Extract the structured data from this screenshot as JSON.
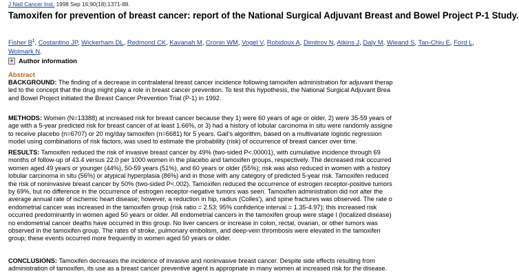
{
  "citation": {
    "journal": "J Natl Cancer Inst.",
    "details": " 1998 Sep 16;90(18):1371-88."
  },
  "title": "Tamoxifen for prevention of breast cancer: report of the National Surgical Adjuvant Breast and Bowel Project P-1 Study.",
  "authors": {
    "first_name": "Fisher B",
    "first_sup": "1",
    "rest": [
      "Costantino JP",
      "Wickerham DL",
      "Redmond CK",
      "Kavanah M",
      "Cronin WM",
      "Vogel V",
      "Robidoux A",
      "Dimitrov N",
      "Atkins J",
      "Daly M",
      "Wieand S",
      "Tan-Chiu E",
      "Ford L",
      "Wolmark N"
    ]
  },
  "author_info": {
    "label": "Author information"
  },
  "abstract": {
    "heading": "Abstract",
    "background": {
      "label": "BACKGROUND:",
      "lines": [
        " The finding of a decrease in contralateral breast cancer incidence following tamoxifen administration for adjuvant therap",
        "led to the concept that the drug might play a role in breast cancer prevention. To test this hypothesis, the National Surgical Adjuvant Brea",
        "and Bowel Project initiated the Breast Cancer Prevention Trial (P-1) in 1992."
      ]
    },
    "methods": {
      "label": "METHODS:",
      "lines": [
        " Women (N=13388) at increased risk for breast cancer because they 1) were 60 years of age or older, 2) were 35-59 years of",
        "age with a 5-year predicted risk for breast cancer of at least 1.66%, or 3) had a history of lobular carcinoma in situ were randomly assigne",
        "to receive placebo (n=6707) or 20 mg/day tamoxifen (n=6681) for 5 years. Gail's algorithm, based on a multivariate logistic regression",
        "model using combinations of risk factors, was used to estimate the probability (risk) of occurrence of breast cancer over time."
      ]
    },
    "results": {
      "label": "RESULTS:",
      "lines": [
        " Tamoxifen reduced the risk of invasive breast cancer by 49% (two-sided P<.00001), with cumulative incidence through 69",
        "months of follow-up of 43.4 versus 22.0 per 1000 women in the placebo and tamoxifen groups, respectively. The decreased risk occurred",
        "women aged 49 years or younger (44%), 50-59 years (51%), and 60 years or older (55%); risk was also reduced in women with a history",
        "lobular carcinoma in situ (56%) or atypical hyperplasia (86%) and in those with any category of predicted 5-year risk. Tamoxifen reduced",
        "the risk of noninvasive breast cancer by 50% (two-sided P<.002). Tamoxifen reduced the occurrence of estrogen receptor-positive tumors",
        "by 69%, but no difference in the occurrence of estrogen receptor-negative tumors was seen. Tamoxifen administration did not alter the",
        "average annual rate of ischemic heart disease; however, a reduction in hip, radius (Colles'), and spine fractures was observed. The rate o",
        "endometrial cancer was increased in the tamoxifen group (risk ratio = 2.53; 95% confidence interval = 1.35-4.97); this increased risk",
        "occurred predominantly in women aged 50 years or older. All endometrial cancers in the tamoxifen group were stage I (localized disease)",
        "no endometrial cancer deaths have occurred in this group. No liver cancers or increase in colon, rectal, ovarian, or other tumors was",
        "observed in the tamoxifen group. The rates of stroke, pulmonary embolism, and deep-vein thrombosis were elevated in the tamoxifen",
        "group; these events occurred more frequently in women aged 50 years or older."
      ]
    },
    "conclusions": {
      "label": "CONCLUSIONS:",
      "lines": [
        " Tamoxifen decreases the incidence of invasive and noninvasive breast cancer. Despite side effects resulting from",
        "administration of tamoxifen, its use as a breast cancer preventive agent is appropriate in many women at increased risk for the disease."
      ]
    }
  },
  "colors": {
    "link": "#1a3c8f",
    "abstract_heading": "#b5651d",
    "text": "#000000"
  }
}
